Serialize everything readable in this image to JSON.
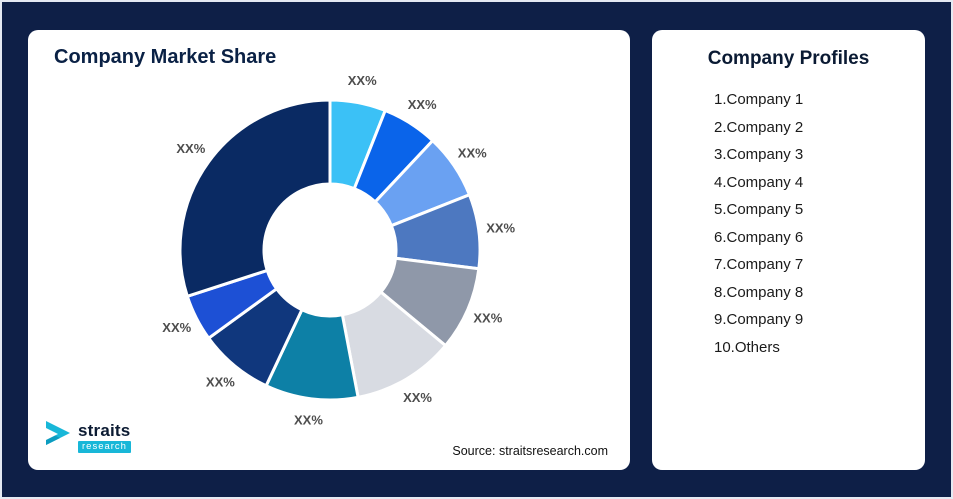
{
  "theme": {
    "background": "#0e1f47",
    "card_bg": "#ffffff",
    "accent_teal": "#18b7d8",
    "title_color": "#0a2145"
  },
  "market_share_card": {
    "title": "Company Market Share",
    "source": "Source: straitsresearch.com",
    "logo": {
      "name": "straits",
      "subtitle": "research"
    }
  },
  "profiles_card": {
    "title": "Company Profiles",
    "items": [
      "1.Company 1",
      "2.Company 2",
      "3.Company 3",
      "4.Company 4",
      "5.Company 5",
      "6.Company 6",
      "7.Company 7",
      "8.Company 8",
      "9.Company 9",
      "10.Others"
    ]
  },
  "chart_data": {
    "type": "pie",
    "subtype": "donut",
    "title": "Company Market Share",
    "legend_position": "none",
    "note": "All slice value labels display the placeholder XX%; slice proportions estimated from pixel angles",
    "segments": [
      {
        "label": "XX%",
        "value": 6,
        "color": "#3bc1f6"
      },
      {
        "label": "XX%",
        "value": 6,
        "color": "#0a64ea"
      },
      {
        "label": "XX%",
        "value": 7,
        "color": "#6aa1f2"
      },
      {
        "label": "XX%",
        "value": 8,
        "color": "#4d78c0"
      },
      {
        "label": "XX%",
        "value": 9,
        "color": "#8f98a9"
      },
      {
        "label": "XX%",
        "value": 11,
        "color": "#d8dbe2"
      },
      {
        "label": "XX%",
        "value": 10,
        "color": "#0d80a6"
      },
      {
        "label": "XX%",
        "value": 8,
        "color": "#10377d"
      },
      {
        "label": "XX%",
        "value": 5,
        "color": "#1d50d5"
      },
      {
        "label": "XX%",
        "value": 30,
        "color": "#0a2a63"
      }
    ]
  }
}
